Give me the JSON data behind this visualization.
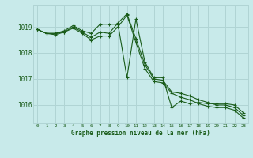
{
  "title": "Graphe pression niveau de la mer (hPa)",
  "bg_color": "#c8eaea",
  "grid_color": "#b0d4d4",
  "line_color": "#1a5c1a",
  "xlim": [
    -0.5,
    23.5
  ],
  "ylim": [
    1015.3,
    1019.85
  ],
  "yticks": [
    1016,
    1017,
    1018,
    1019
  ],
  "xticks": [
    0,
    1,
    2,
    3,
    4,
    5,
    6,
    7,
    8,
    9,
    10,
    11,
    12,
    13,
    14,
    15,
    16,
    17,
    18,
    19,
    20,
    21,
    22,
    23
  ],
  "series1": [
    1018.9,
    1018.75,
    1018.75,
    1018.85,
    1019.05,
    1018.85,
    1018.75,
    1019.1,
    1019.1,
    1019.1,
    1017.05,
    1019.3,
    1017.65,
    1017.05,
    1017.05,
    1015.9,
    1016.15,
    1016.05,
    1016.1,
    1016.05,
    1016.05,
    1016.05,
    1016.0,
    1015.7
  ],
  "series2": [
    1018.9,
    1018.75,
    1018.75,
    1018.8,
    1019.0,
    1018.8,
    1018.6,
    1018.8,
    1018.75,
    1019.15,
    1019.5,
    1018.55,
    1017.55,
    1017.0,
    1016.95,
    1016.5,
    1016.45,
    1016.35,
    1016.2,
    1016.1,
    1016.0,
    1016.0,
    1015.9,
    1015.6
  ],
  "series3": [
    1018.9,
    1018.75,
    1018.7,
    1018.8,
    1018.95,
    1018.75,
    1018.5,
    1018.65,
    1018.65,
    1019.0,
    1019.45,
    1018.4,
    1017.4,
    1016.9,
    1016.85,
    1016.45,
    1016.3,
    1016.2,
    1016.05,
    1015.95,
    1015.9,
    1015.9,
    1015.8,
    1015.5
  ]
}
